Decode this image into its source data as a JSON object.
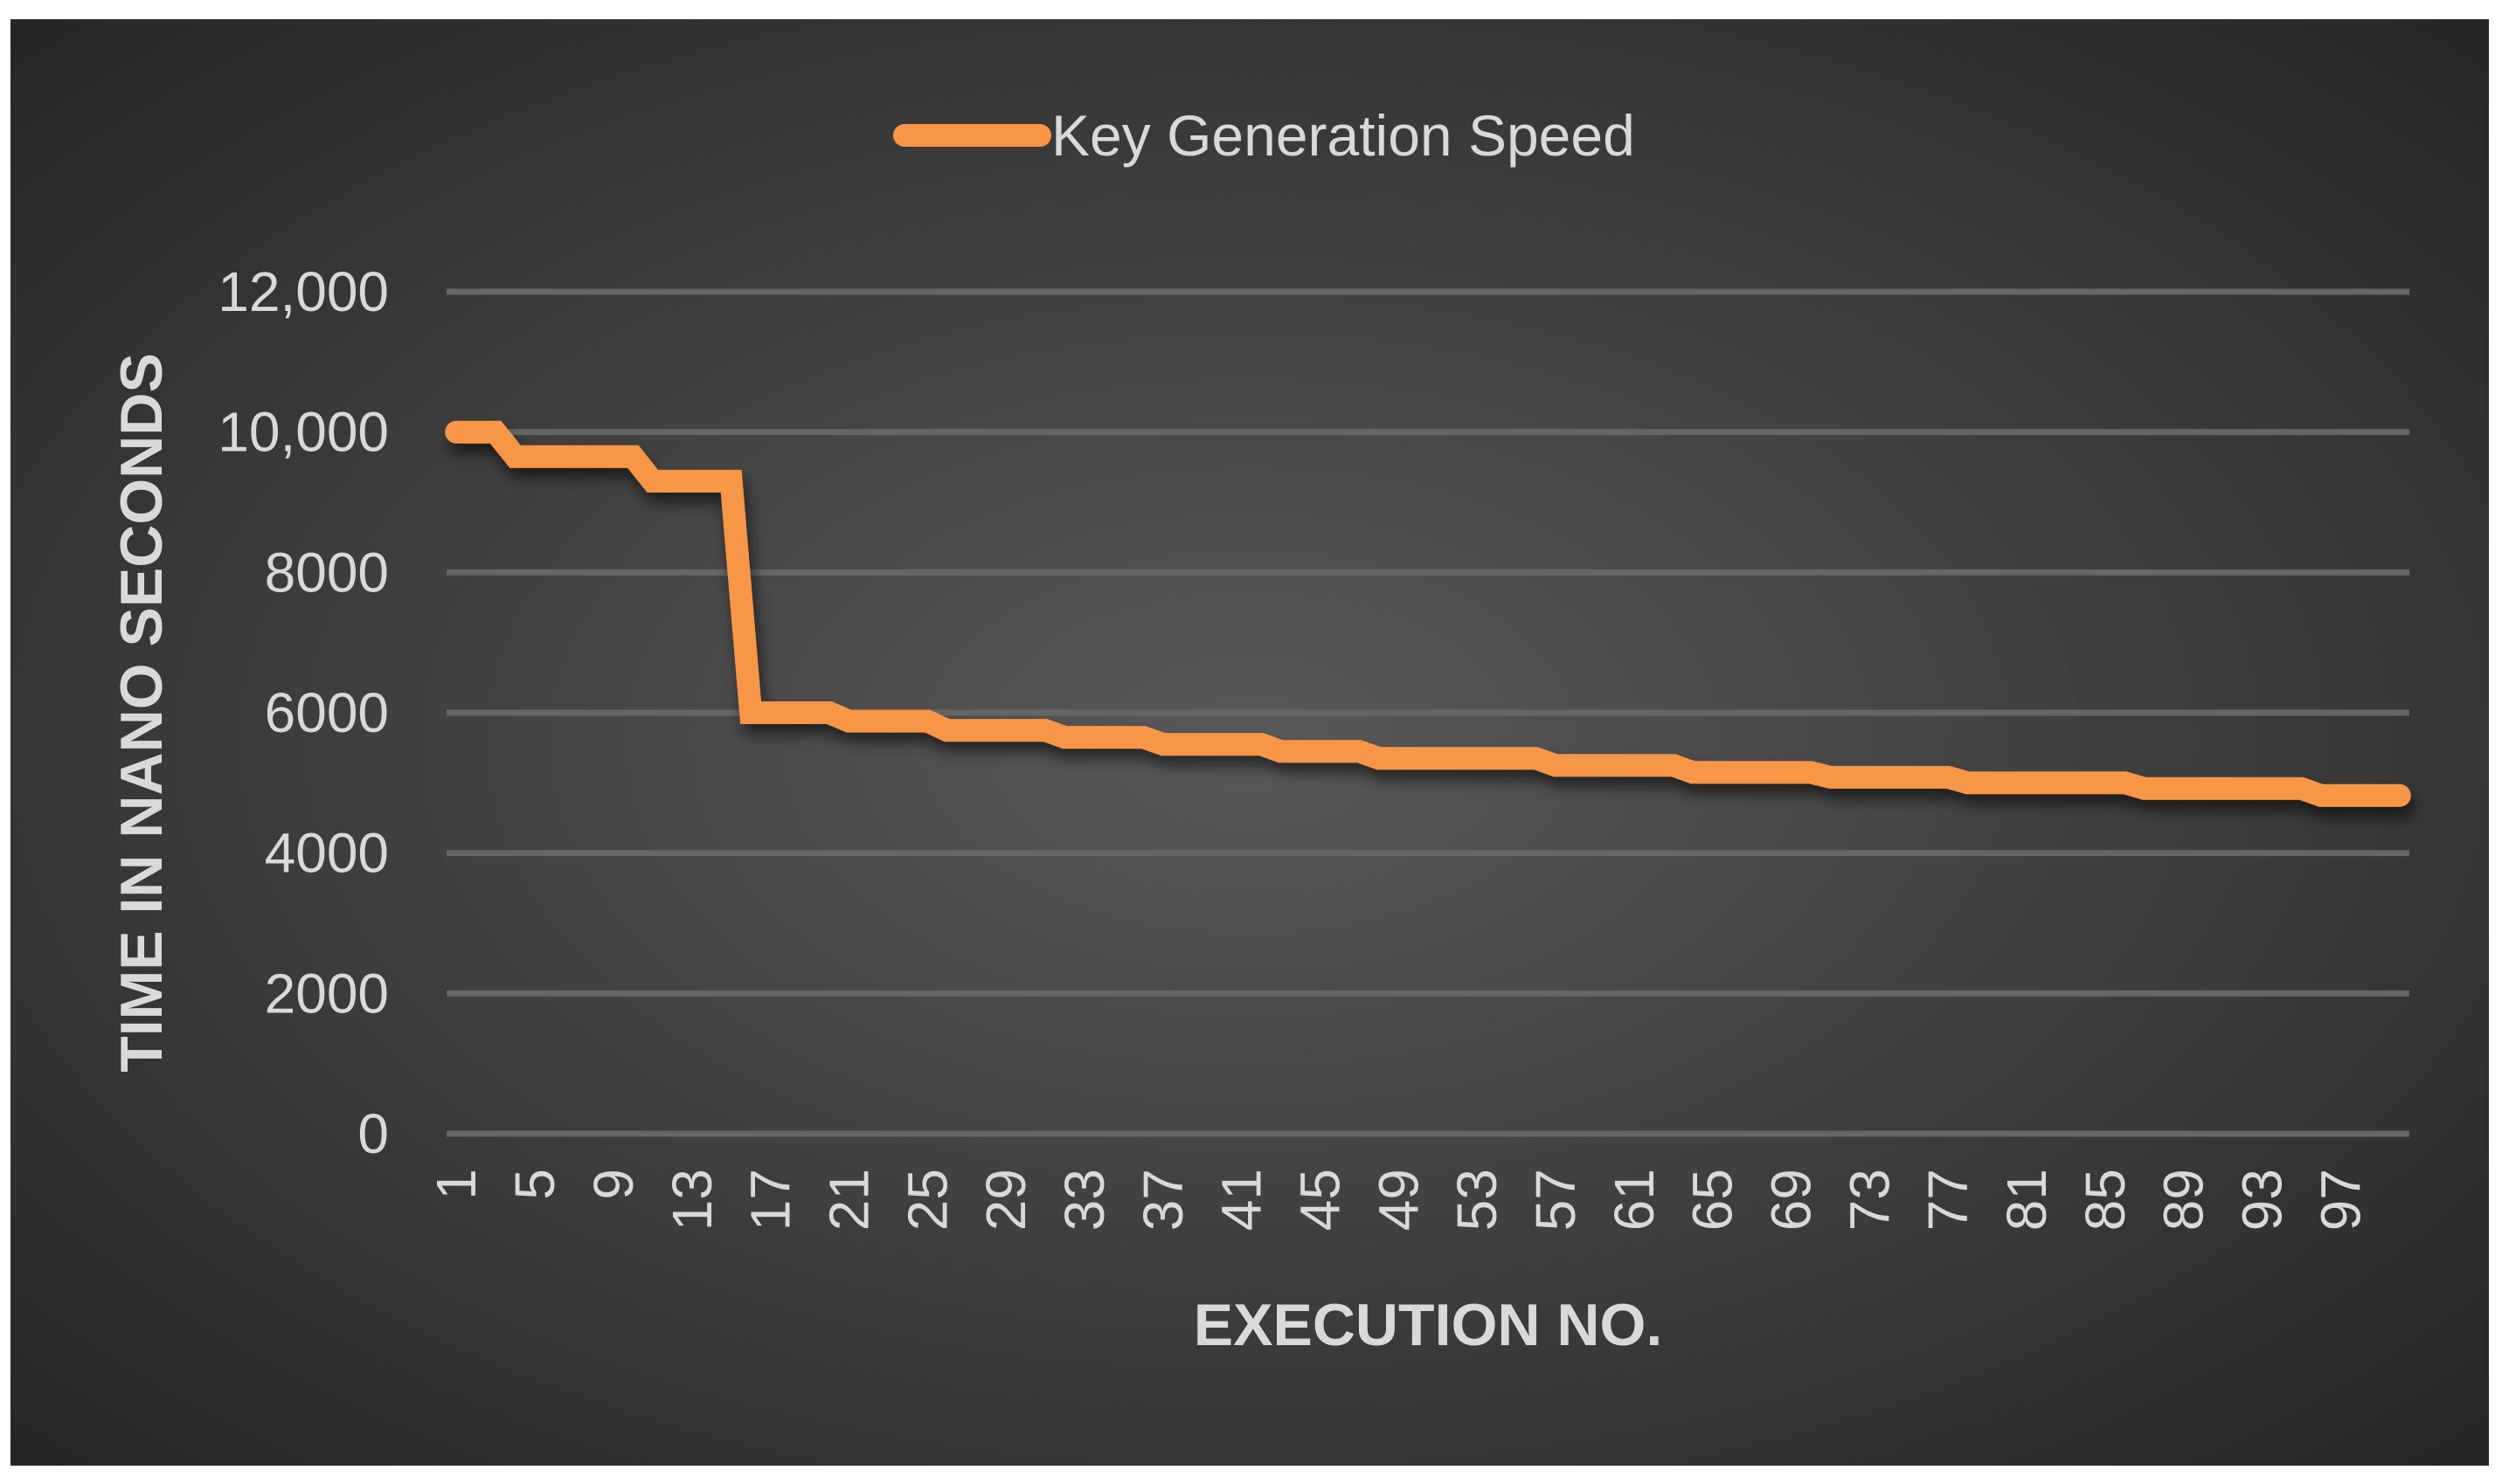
{
  "chart_data": {
    "type": "line",
    "title": "",
    "legend": {
      "entries": [
        "Key Generation Speed"
      ],
      "placement": "top"
    },
    "xlabel": "EXECUTION NO.",
    "ylabel": "TIME IN NANO SECONDS",
    "ylim": [
      0,
      12000
    ],
    "yticks": [
      0,
      2000,
      4000,
      6000,
      8000,
      10000,
      12000
    ],
    "ytick_labels": [
      "0",
      "2000",
      "4000",
      "6000",
      "8000",
      "10,000",
      "12,000"
    ],
    "xtick_labels": [
      "1",
      "5",
      "9",
      "13",
      "17",
      "21",
      "25",
      "29",
      "33",
      "37",
      "41",
      "45",
      "49",
      "53",
      "57",
      "61",
      "65",
      "69",
      "73",
      "77",
      "81",
      "85",
      "89",
      "93",
      "97"
    ],
    "x_count": 100,
    "grid": true,
    "colors": {
      "series": "#f79646",
      "background_center": "#595959",
      "background_edge": "#262626",
      "grid": "#666666"
    },
    "series": [
      {
        "name": "Key Generation Speed",
        "values": [
          10000,
          10000,
          10000,
          9650,
          9650,
          9650,
          9650,
          9650,
          9650,
          9650,
          9300,
          9300,
          9300,
          9300,
          9300,
          6000,
          6000,
          6000,
          6000,
          6000,
          5880,
          5880,
          5880,
          5880,
          5880,
          5750,
          5750,
          5750,
          5750,
          5750,
          5750,
          5650,
          5650,
          5650,
          5650,
          5650,
          5550,
          5550,
          5550,
          5550,
          5550,
          5550,
          5450,
          5450,
          5450,
          5450,
          5450,
          5350,
          5350,
          5350,
          5350,
          5350,
          5350,
          5350,
          5350,
          5350,
          5250,
          5250,
          5250,
          5250,
          5250,
          5250,
          5250,
          5150,
          5150,
          5150,
          5150,
          5150,
          5150,
          5150,
          5080,
          5080,
          5080,
          5080,
          5080,
          5080,
          5080,
          5000,
          5000,
          5000,
          5000,
          5000,
          5000,
          5000,
          5000,
          5000,
          4920,
          4920,
          4920,
          4920,
          4920,
          4920,
          4920,
          4920,
          4920,
          4820,
          4820,
          4820,
          4820,
          4820
        ]
      }
    ]
  }
}
